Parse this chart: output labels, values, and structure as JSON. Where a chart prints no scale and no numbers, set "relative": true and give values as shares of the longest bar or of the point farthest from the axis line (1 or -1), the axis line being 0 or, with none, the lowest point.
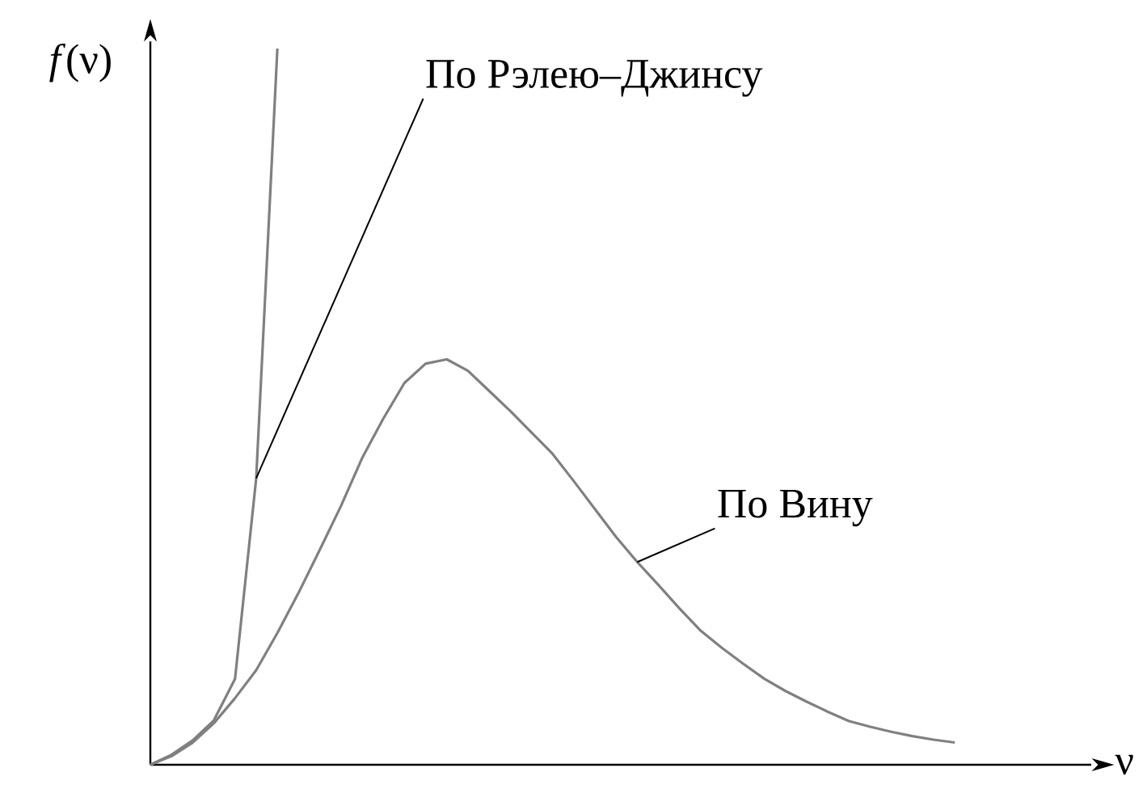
{
  "chart_data": {
    "type": "line",
    "relative": true,
    "xlabel": "ν",
    "ylabel": "*f*(ν)",
    "marker": "none",
    "line_style": "solid",
    "categories": [
      null,
      null,
      null,
      null,
      null,
      null,
      null,
      null,
      null,
      null,
      null,
      null,
      null,
      null,
      null,
      null,
      null,
      null,
      null,
      null,
      null,
      null,
      null,
      null,
      null,
      null,
      null,
      null,
      null,
      null,
      null,
      null,
      null,
      null,
      null,
      null,
      null,
      null,
      null
    ],
    "series": [
      {
        "name": "По Рэлею–Джинсу",
        "color": "#808080",
        "values": [
          0,
          0.014,
          0.034,
          0.062,
          0.12,
          0.4,
          1.0,
          null,
          null,
          null,
          null,
          null,
          null,
          null,
          null,
          null,
          null,
          null,
          null,
          null,
          null,
          null,
          null,
          null,
          null,
          null,
          null,
          null,
          null,
          null,
          null,
          null,
          null,
          null,
          null,
          null,
          null,
          null,
          null
        ]
      },
      {
        "name": "По Вину",
        "color": "#808080",
        "values": [
          0,
          0.012,
          0.031,
          0.058,
          0.093,
          0.132,
          0.184,
          0.24,
          0.3,
          0.361,
          0.428,
          0.483,
          0.533,
          0.56,
          0.566,
          0.55,
          0.522,
          0.494,
          0.464,
          0.434,
          0.396,
          0.357,
          0.318,
          0.283,
          0.251,
          0.218,
          0.187,
          0.163,
          0.141,
          0.12,
          0.103,
          0.088,
          0.074,
          0.061,
          0.053,
          0.046,
          0.04,
          0.035,
          0.031
        ]
      }
    ]
  }
}
